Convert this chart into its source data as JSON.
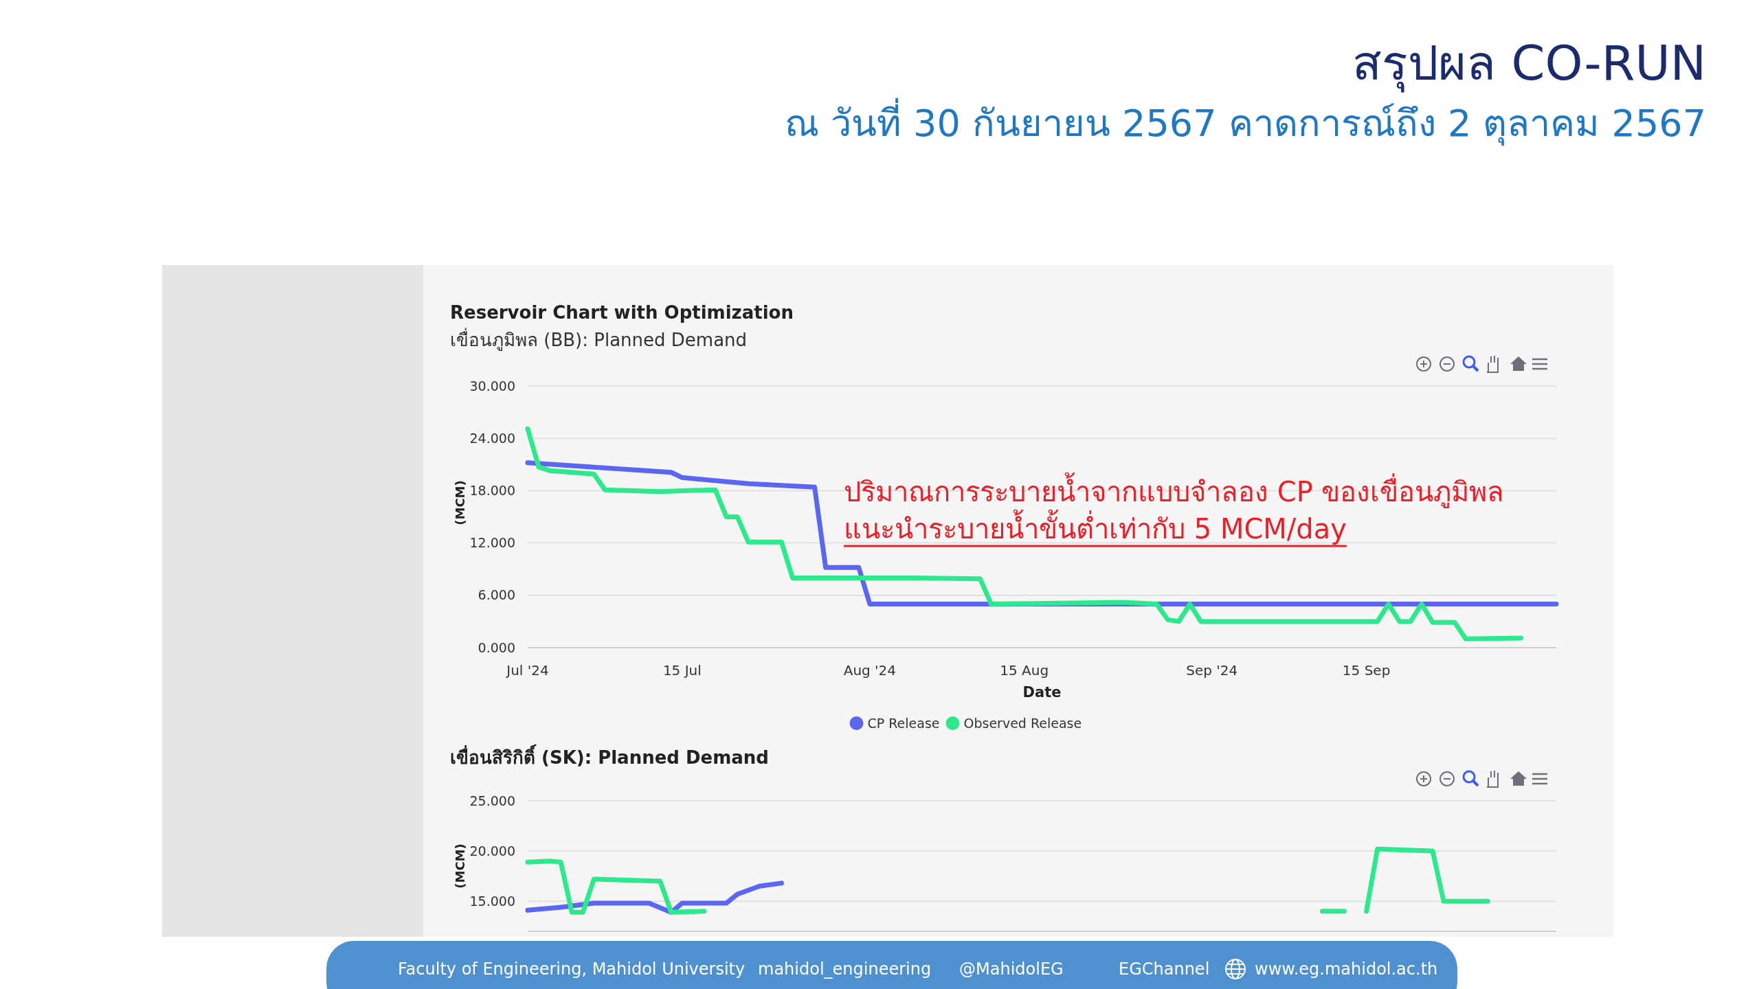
{
  "chart_data": [
    {
      "type": "other",
      "title": "สรุปผล CO-RUN",
      "subtitle": "ณ วันที่ 30 กันยายน 2567 คาดการณ์ถึง 2 ตุลาคม 2567",
      "annotations": [
        "Faculty of Engineering, Mahidol University",
        "mahidol_engineering",
        "@MahidolEG",
        "EGChannel",
        "www.eg.mahidol.ac.th"
      ]
    },
    {
      "type": "line",
      "title": "Reservoir Chart with Optimization",
      "subtitle": "เขื่อนภูมิพล (BB): Planned Demand",
      "xlabel": "Date",
      "ylabel": "(MCM)",
      "xlim": [
        "2024-07-01",
        "2024-10-02T05:00"
      ],
      "ylim": [
        0,
        30
      ],
      "xticks": [
        {
          "value": "2024-07-01",
          "label": "Jul '24"
        },
        {
          "value": "2024-07-15",
          "label": "15 Jul"
        },
        {
          "value": "2024-08-01",
          "label": "Aug '24"
        },
        {
          "value": "2024-08-15",
          "label": "15 Aug"
        },
        {
          "value": "2024-09-01",
          "label": "Sep '24"
        },
        {
          "value": "2024-09-15",
          "label": "15 Sep"
        }
      ],
      "yticks": [
        {
          "value": 0,
          "label": "0.000"
        },
        {
          "value": 6,
          "label": "6.000"
        },
        {
          "value": 12,
          "label": "12.000"
        },
        {
          "value": 18,
          "label": "18.000"
        },
        {
          "value": 24,
          "label": "24.000"
        },
        {
          "value": 30,
          "label": "30.000"
        }
      ],
      "grid": "y",
      "legend": "bottom",
      "marker": "none",
      "line_style": "solid",
      "annotations": [
        "ปริมาณการระบายน้ำจากแบบจำลอง CP ของเขื่อนภูมิพล",
        "แนะนำระบายน้ำขั้นต่ำเท่ากับ 5 MCM/day"
      ],
      "series": [
        {
          "name": "CP Release",
          "color": "#5b67f0",
          "x": [
            "2024-07-01",
            "2024-07-14",
            "2024-07-15",
            "2024-07-21",
            "2024-07-27",
            "2024-07-28",
            "2024-07-31",
            "2024-08-01",
            "2024-10-02T05:00"
          ],
          "values": [
            21.2,
            20.1,
            19.5,
            18.8,
            18.4,
            9.2,
            9.2,
            5.0,
            5.0
          ]
        },
        {
          "name": "Observed Release",
          "color": "#2ee88e",
          "x": [
            "2024-07-01",
            "2024-07-02",
            "2024-07-03",
            "2024-07-07",
            "2024-07-08",
            "2024-07-13",
            "2024-07-18",
            "2024-07-19",
            "2024-07-20",
            "2024-07-21",
            "2024-07-24",
            "2024-07-25",
            "2024-08-05",
            "2024-08-11",
            "2024-08-12",
            "2024-08-24",
            "2024-08-27",
            "2024-08-28",
            "2024-08-29",
            "2024-08-30",
            "2024-08-31",
            "2024-09-16",
            "2024-09-17",
            "2024-09-18",
            "2024-09-19",
            "2024-09-20",
            "2024-09-21",
            "2024-09-23",
            "2024-09-24",
            "2024-09-29"
          ],
          "values": [
            25.1,
            20.7,
            20.3,
            19.9,
            18.1,
            17.9,
            18.1,
            15.0,
            15.0,
            12.1,
            12.1,
            8.0,
            8.0,
            7.9,
            5.0,
            5.2,
            5.0,
            3.2,
            3.0,
            5.0,
            3.0,
            3.0,
            5.0,
            3.0,
            3.0,
            5.0,
            2.9,
            2.9,
            1.0,
            1.1
          ]
        }
      ]
    },
    {
      "type": "line",
      "title": "เขื่อนสิริกิติ์ (SK): Planned Demand",
      "ylabel": "(MCM)",
      "xlim": [
        "2024-07-01",
        "2024-10-02T05:00"
      ],
      "ylim": [
        12,
        25
      ],
      "yticks": [
        {
          "value": 15,
          "label": "15.000"
        },
        {
          "value": 20,
          "label": "20.000"
        },
        {
          "value": 25,
          "label": "25.000"
        }
      ],
      "tick_labels": "y",
      "grid": "y",
      "marker": "none",
      "line_style": "solid",
      "series": [
        {
          "color": "#5b67f0",
          "x": [
            "2024-07-01",
            "2024-07-04",
            "2024-07-07",
            "2024-07-12",
            "2024-07-14",
            "2024-07-15",
            "2024-07-19",
            "2024-07-20",
            "2024-07-22",
            "2024-07-24"
          ],
          "values": [
            14.1,
            14.4,
            14.8,
            14.8,
            13.9,
            14.8,
            14.8,
            15.7,
            16.5,
            16.8
          ]
        },
        {
          "color": "#2ee88e",
          "x": [
            "2024-07-01",
            "2024-07-03",
            "2024-07-04",
            "2024-07-05",
            "2024-07-06",
            "2024-07-07",
            "2024-07-13",
            "2024-07-14",
            "2024-07-17",
            "2024-07-18",
            "2024-09-11",
            "2024-09-13",
            "2024-09-14",
            "2024-09-15",
            "2024-09-16",
            "2024-09-21",
            "2024-09-22",
            "2024-09-26"
          ],
          "values": [
            18.9,
            19.0,
            18.9,
            13.9,
            13.9,
            17.2,
            17.0,
            13.9,
            14.0,
            null,
            14.0,
            14.0,
            null,
            14.0,
            20.2,
            20.0,
            15.0,
            15.0
          ]
        }
      ]
    }
  ]
}
